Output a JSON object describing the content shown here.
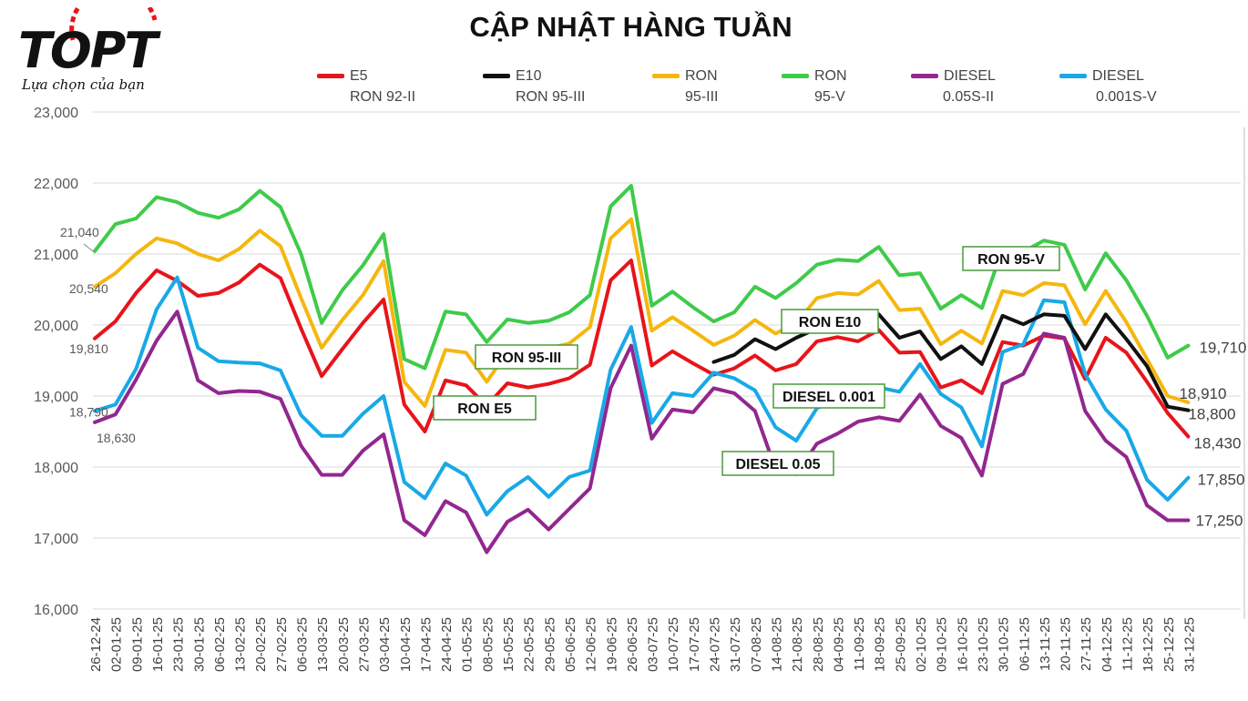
{
  "header": {
    "logo_text": "TOPT",
    "logo_tagline": "Lựa chọn của bạn",
    "title": "CẬP NHẬT HÀNG TUẦN"
  },
  "legend": [
    {
      "line1": "E5",
      "line2": "RON 92-II",
      "color": "#e8141b"
    },
    {
      "line1": "E10",
      "line2": "RON 95-III",
      "color": "#111111"
    },
    {
      "line1": "RON",
      "line2": "95-III",
      "color": "#f5b70e"
    },
    {
      "line1": "RON",
      "line2": "95-V",
      "color": "#3fcb4a"
    },
    {
      "line1": "DIESEL",
      "line2": "0.05S-II",
      "color": "#92278f"
    },
    {
      "line1": "DIESEL",
      "line2": "0.001S-V",
      "color": "#18a9e6"
    }
  ],
  "chart_data": {
    "type": "line",
    "ylim": [
      16000,
      23000
    ],
    "yticks": [
      "16,000",
      "17,000",
      "18,000",
      "19,000",
      "20,000",
      "21,000",
      "22,000",
      "23,000"
    ],
    "grid": true,
    "x": [
      "26-12-24",
      "02-01-25",
      "09-01-25",
      "16-01-25",
      "23-01-25",
      "30-01-25",
      "06-02-25",
      "13-02-25",
      "20-02-25",
      "27-02-25",
      "06-03-25",
      "13-03-25",
      "20-03-25",
      "27-03-25",
      "03-04-25",
      "10-04-25",
      "17-04-25",
      "24-04-25",
      "01-05-25",
      "08-05-25",
      "15-05-25",
      "22-05-25",
      "29-05-25",
      "05-06-25",
      "12-06-25",
      "19-06-25",
      "26-06-25",
      "03-07-25",
      "10-07-25",
      "17-07-25",
      "24-07-25",
      "31-07-25",
      "07-08-25",
      "14-08-25",
      "21-08-25",
      "28-08-25",
      "04-09-25",
      "11-09-25",
      "18-09-25",
      "25-09-25",
      "02-10-25",
      "09-10-25",
      "16-10-25",
      "23-10-25",
      "30-10-25",
      "06-11-25",
      "13-11-25",
      "20-11-25",
      "27-11-25",
      "04-12-25",
      "11-12-25",
      "18-12-25",
      "25-12-25",
      "31-12-25"
    ],
    "series": [
      {
        "name": "E5 RON 92-II",
        "color": "#e8141b",
        "values": [
          19810,
          20050,
          20450,
          20770,
          20620,
          20410,
          20450,
          20600,
          20850,
          20660,
          19950,
          19280,
          19660,
          20030,
          20360,
          18880,
          18500,
          19220,
          19150,
          18860,
          19180,
          19120,
          19170,
          19250,
          19440,
          20630,
          20910,
          19430,
          19630,
          19460,
          19300,
          19390,
          19570,
          19360,
          19450,
          19770,
          19830,
          19770,
          19930,
          19610,
          19620,
          19120,
          19220,
          19040,
          19760,
          19710,
          19850,
          19810,
          19240,
          19820,
          19610,
          19200,
          18760,
          18430
        ]
      },
      {
        "name": "E10 RON 95-III",
        "color": "#111111",
        "values": [
          null,
          null,
          null,
          null,
          null,
          null,
          null,
          null,
          null,
          null,
          null,
          null,
          null,
          null,
          null,
          null,
          null,
          null,
          null,
          null,
          null,
          null,
          null,
          null,
          null,
          null,
          null,
          null,
          null,
          null,
          19480,
          19580,
          19800,
          19660,
          19820,
          19950,
          20050,
          19970,
          20150,
          19820,
          19910,
          19520,
          19700,
          19450,
          20130,
          20010,
          20150,
          20130,
          19660,
          20150,
          19800,
          19420,
          18850,
          18800
        ]
      },
      {
        "name": "RON 95-III",
        "color": "#f5b70e",
        "values": [
          20540,
          20730,
          21000,
          21220,
          21150,
          21000,
          20910,
          21070,
          21330,
          21110,
          20380,
          19680,
          20070,
          20420,
          20900,
          19200,
          18860,
          19650,
          19610,
          19200,
          19620,
          19590,
          19670,
          19740,
          19970,
          21220,
          21490,
          19920,
          20110,
          19920,
          19720,
          19850,
          20070,
          19880,
          20030,
          20380,
          20450,
          20430,
          20620,
          20210,
          20230,
          19730,
          19920,
          19740,
          20480,
          20420,
          20590,
          20560,
          20010,
          20480,
          20040,
          19520,
          19000,
          18910
        ]
      },
      {
        "name": "RON 95-V",
        "color": "#3fcb4a",
        "values": [
          21040,
          21420,
          21500,
          21800,
          21730,
          21580,
          21510,
          21630,
          21890,
          21660,
          21000,
          20030,
          20490,
          20840,
          21280,
          19520,
          19390,
          20190,
          20150,
          19760,
          20080,
          20030,
          20060,
          20180,
          20420,
          21670,
          21960,
          20270,
          20470,
          20250,
          20050,
          20180,
          20540,
          20380,
          20590,
          20850,
          20920,
          20900,
          21100,
          20700,
          20730,
          20230,
          20420,
          20240,
          21070,
          21030,
          21190,
          21130,
          20500,
          21010,
          20630,
          20130,
          19540,
          19710
        ]
      },
      {
        "name": "DIESEL 0.05S-II",
        "color": "#92278f",
        "values": [
          18630,
          18740,
          19230,
          19780,
          20190,
          19220,
          19040,
          19070,
          19060,
          18960,
          18300,
          17890,
          17890,
          18230,
          18460,
          17250,
          17040,
          17520,
          17360,
          16800,
          17230,
          17400,
          17120,
          17410,
          17700,
          19110,
          19710,
          18400,
          18810,
          18770,
          19110,
          19040,
          18790,
          17970,
          17900,
          18330,
          18470,
          18640,
          18700,
          18650,
          19020,
          18580,
          18410,
          17880,
          19170,
          19310,
          19880,
          19820,
          18790,
          18370,
          18140,
          17460,
          17250,
          17250
        ]
      },
      {
        "name": "DIESEL 0.001S-V",
        "color": "#18a9e6",
        "values": [
          18790,
          18880,
          19380,
          20220,
          20670,
          19680,
          19490,
          19470,
          19460,
          19360,
          18730,
          18440,
          18440,
          18750,
          19000,
          17790,
          17560,
          18050,
          17880,
          17330,
          17660,
          17860,
          17580,
          17860,
          17950,
          19370,
          19970,
          18620,
          19040,
          19000,
          19330,
          19250,
          19080,
          18560,
          18370,
          18830,
          18940,
          19060,
          19120,
          19060,
          19450,
          19030,
          18840,
          18290,
          19620,
          19730,
          20350,
          20320,
          19310,
          18810,
          18510,
          17820,
          17540,
          17850
        ]
      }
    ],
    "value_labels": [
      {
        "text": "21,040",
        "series": 3,
        "index": 0
      },
      {
        "text": "20,540",
        "series": 2,
        "index": 0
      },
      {
        "text": "19,810",
        "series": 0,
        "index": 0
      },
      {
        "text": "18,790",
        "series": 5,
        "index": 0
      },
      {
        "text": "18,630",
        "series": 4,
        "index": 0
      },
      {
        "text": "19,710",
        "series": 3,
        "index": 53
      },
      {
        "text": "18,910",
        "series": 2,
        "index": 53
      },
      {
        "text": "18,800",
        "series": 1,
        "index": 53
      },
      {
        "text": "18,430",
        "series": 0,
        "index": 53
      },
      {
        "text": "17,850",
        "series": 5,
        "index": 53
      },
      {
        "text": "17,250",
        "series": 4,
        "index": 53
      }
    ],
    "annotations": [
      {
        "text": "RON 95-III"
      },
      {
        "text": "RON E5"
      },
      {
        "text": "RON 95-V"
      },
      {
        "text": "RON E10"
      },
      {
        "text": "DIESEL 0.001"
      },
      {
        "text": "DIESEL 0.05"
      }
    ]
  }
}
